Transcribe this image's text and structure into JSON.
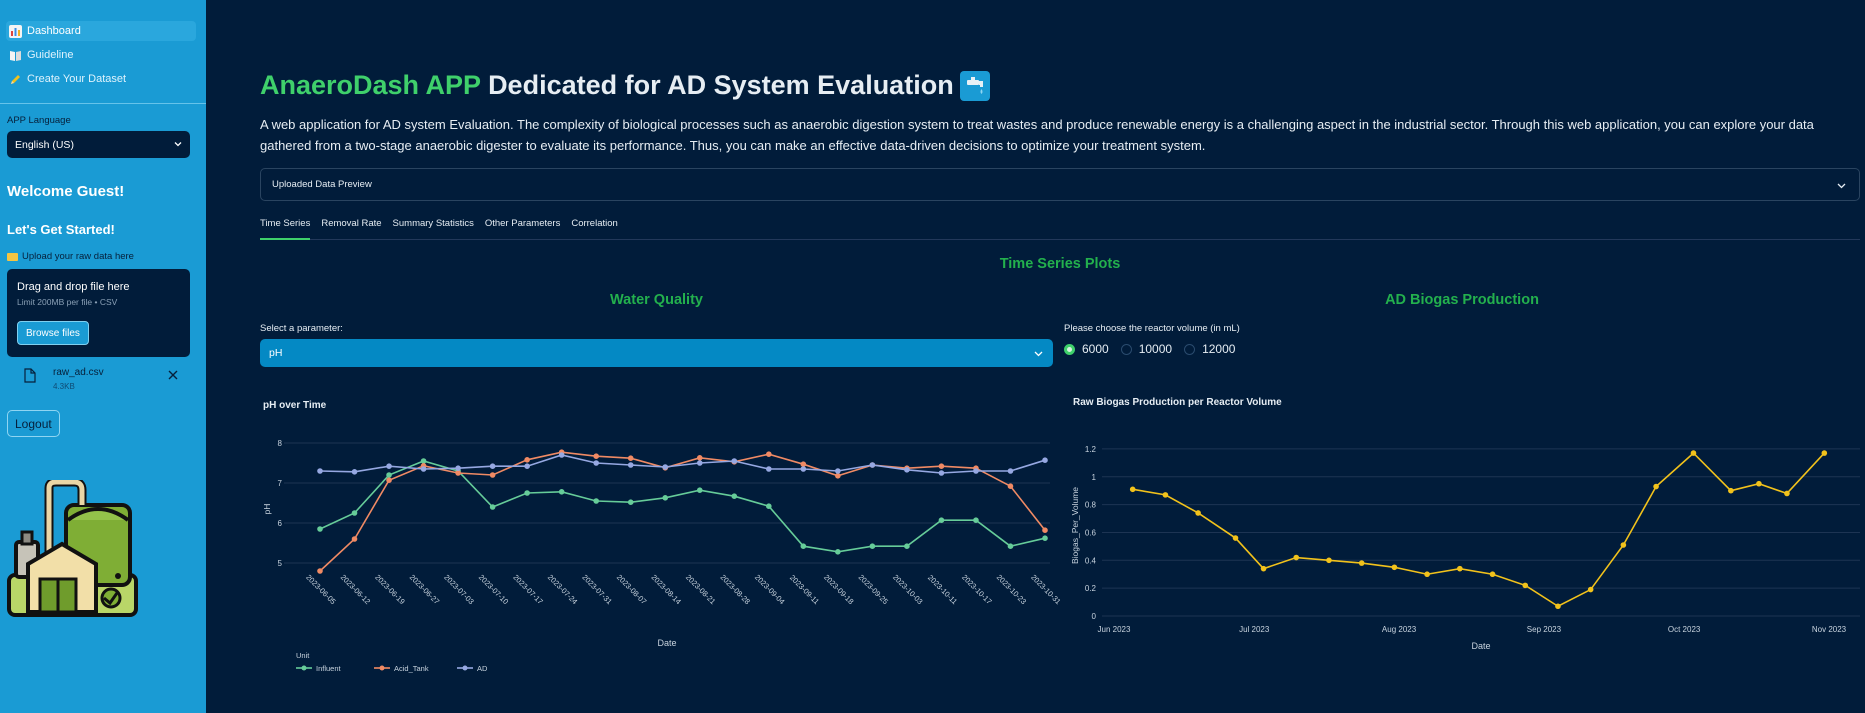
{
  "sidebar": {
    "nav": [
      {
        "label": "Dashboard",
        "icon": "bar-chart-icon",
        "active": true
      },
      {
        "label": "Guideline",
        "icon": "book-icon",
        "active": false
      },
      {
        "label": "Create Your Dataset",
        "icon": "pencil-icon",
        "active": false
      }
    ],
    "language_label": "APP Language",
    "language_value": "English (US)",
    "welcome": "Welcome Guest!",
    "started": "Let's Get Started!",
    "upload_label": "Upload your raw data here",
    "dropzone_title": "Drag and drop file here",
    "dropzone_limit": "Limit 200MB per file • CSV",
    "browse_label": "Browse files",
    "file_name": "raw_ad.csv",
    "file_size": "4.3KB",
    "logout_label": "Logout"
  },
  "header": {
    "title_accent": "AnaeroDash APP",
    "title_rest": "Dedicated for AD System Evaluation",
    "intro": "A web application for AD system Evaluation. The complexity of biological processes such as anaerobic digestion system to treat wastes and produce renewable energy is a challenging aspect in the industrial sector. Through this web application, you can explore your data gathered from a two-stage anaerobic digester to evaluate its performance. Thus, you can make an effective data-driven decisions to optimize your treatment system.",
    "expander_label": "Uploaded Data Preview"
  },
  "tabs": [
    {
      "label": "Time Series",
      "active": true
    },
    {
      "label": "Removal Rate",
      "active": false
    },
    {
      "label": "Summary Statistics",
      "active": false
    },
    {
      "label": "Other Parameters",
      "active": false
    },
    {
      "label": "Correlation",
      "active": false
    }
  ],
  "sections": {
    "time_series_title": "Time Series Plots",
    "water_quality_title": "Water Quality",
    "biogas_title": "AD Biogas Production",
    "select_label": "Select a parameter:",
    "select_value": "pH",
    "volume_label": "Please choose the reactor volume (in mL)",
    "volume_options": [
      {
        "label": "6000",
        "selected": true
      },
      {
        "label": "10000",
        "selected": false
      },
      {
        "label": "12000",
        "selected": false
      }
    ]
  },
  "colors": {
    "influent": "#66cc99",
    "acid_tank": "#f08a64",
    "ad": "#96a8e2",
    "biogas": "#f2c21b",
    "accent_green": "#3fd06b",
    "sidebar": "#1a9bd4"
  },
  "chart_data": [
    {
      "type": "line",
      "title": "pH over Time",
      "xlabel": "Date",
      "ylabel": "pH",
      "legend_title": "Unit",
      "legend_position": "bottom-left",
      "ylim": [
        4.6,
        8.1
      ],
      "yticks": [
        5,
        6,
        7,
        8
      ],
      "categories": [
        "2023-06-05",
        "2023-06-12",
        "2023-06-19",
        "2023-06-27",
        "2023-07-03",
        "2023-07-10",
        "2023-07-17",
        "2023-07-24",
        "2023-07-31",
        "2023-08-07",
        "2023-08-14",
        "2023-08-21",
        "2023-08-28",
        "2023-09-04",
        "2023-09-11",
        "2023-09-18",
        "2023-09-25",
        "2023-10-03",
        "2023-10-11",
        "2023-10-17",
        "2023-10-23",
        "2023-10-31"
      ],
      "series": [
        {
          "name": "Influent",
          "values": [
            5.85,
            6.25,
            7.2,
            7.55,
            7.3,
            6.4,
            6.75,
            6.78,
            6.55,
            6.52,
            6.63,
            6.82,
            6.67,
            6.42,
            5.42,
            5.28,
            5.42,
            5.42,
            6.07,
            6.07,
            5.42,
            5.62
          ]
        },
        {
          "name": "Acid_Tank",
          "values": [
            4.8,
            5.6,
            7.07,
            7.43,
            7.25,
            7.2,
            7.58,
            7.77,
            7.67,
            7.62,
            7.38,
            7.63,
            7.53,
            7.72,
            7.47,
            7.18,
            7.45,
            7.37,
            7.42,
            7.37,
            6.92,
            5.82
          ]
        },
        {
          "name": "AD",
          "values": [
            7.3,
            7.28,
            7.42,
            7.35,
            7.37,
            7.42,
            7.42,
            7.7,
            7.5,
            7.45,
            7.4,
            7.5,
            7.55,
            7.35,
            7.35,
            7.3,
            7.45,
            7.33,
            7.25,
            7.3,
            7.3,
            7.57
          ]
        }
      ]
    },
    {
      "type": "line",
      "title": "Raw Biogas Production per Reactor Volume",
      "xlabel": "Date",
      "ylabel": "Biogas_Per_Volume",
      "ylim": [
        0,
        1.3
      ],
      "yticks": [
        0,
        0.2,
        0.4,
        0.6,
        0.8,
        1,
        1.2
      ],
      "xticks": [
        "Jun 2023",
        "Jul 2023",
        "Aug 2023",
        "Sep 2023",
        "Oct 2023",
        "Nov 2023"
      ],
      "x": [
        "2023-06-05",
        "2023-06-12",
        "2023-06-19",
        "2023-06-27",
        "2023-07-03",
        "2023-07-10",
        "2023-07-17",
        "2023-07-24",
        "2023-07-31",
        "2023-08-07",
        "2023-08-14",
        "2023-08-21",
        "2023-08-28",
        "2023-09-04",
        "2023-09-11",
        "2023-09-18",
        "2023-09-25",
        "2023-10-03",
        "2023-10-11",
        "2023-10-17",
        "2023-10-23",
        "2023-10-31"
      ],
      "series": [
        {
          "values": [
            0.91,
            0.87,
            0.74,
            0.56,
            0.34,
            0.42,
            0.4,
            0.38,
            0.35,
            0.3,
            0.34,
            0.3,
            0.22,
            0.07,
            0.19,
            0.51,
            0.93,
            1.17,
            0.9,
            0.95,
            0.88,
            1.17
          ]
        }
      ]
    }
  ]
}
